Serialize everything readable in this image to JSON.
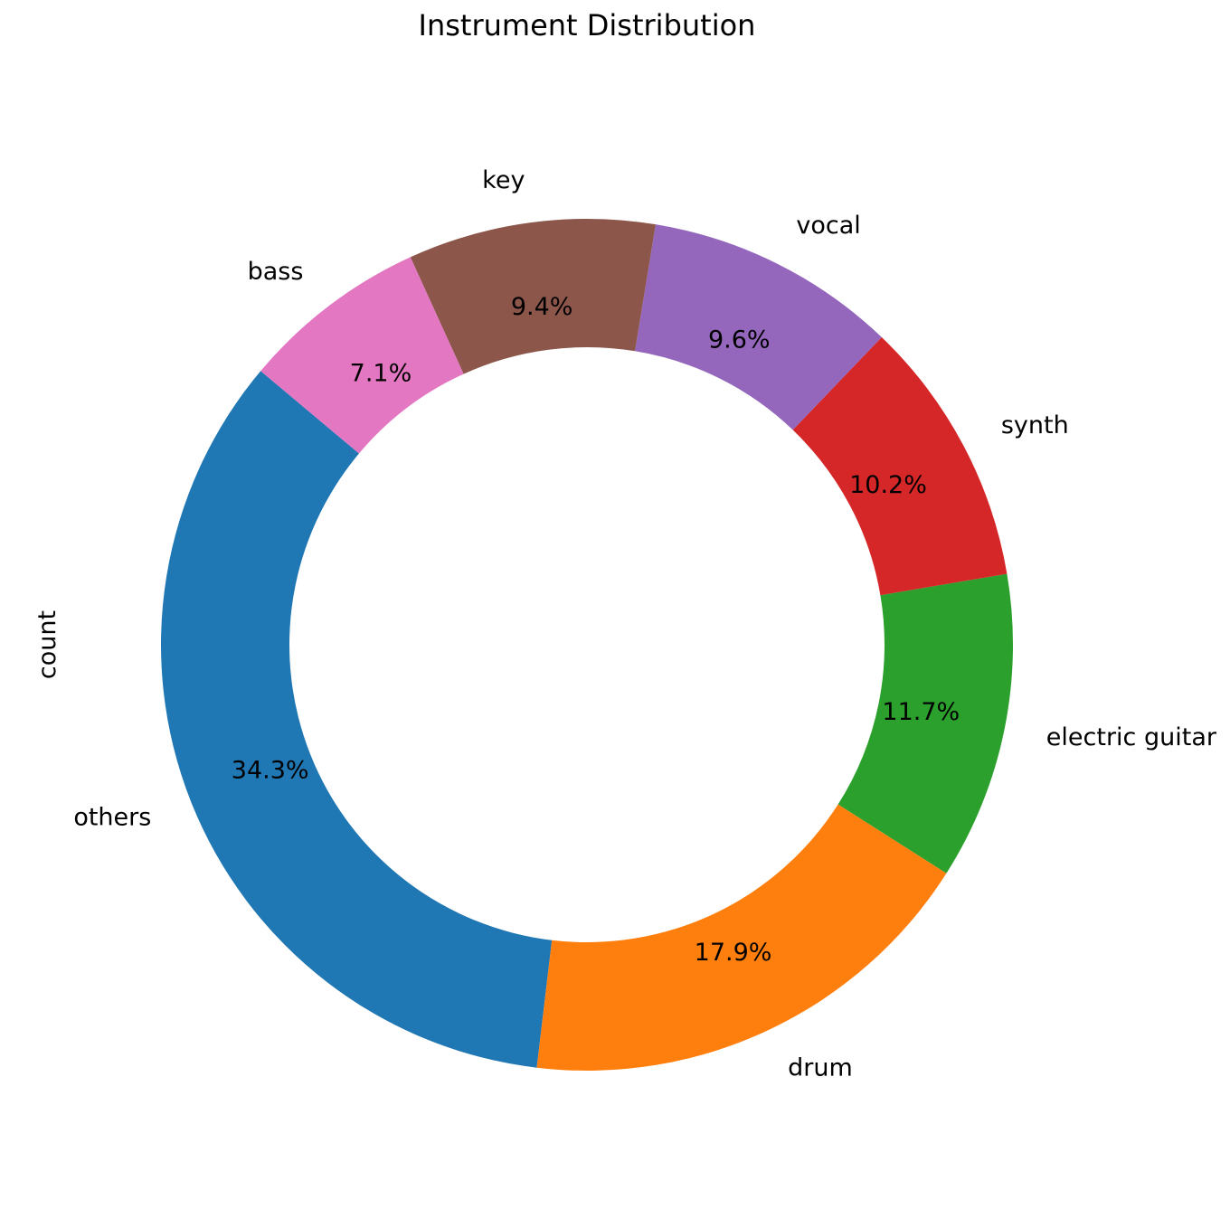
{
  "chart_data": {
    "type": "pie",
    "variant": "donut",
    "title": "Instrument Distribution",
    "ylabel": "count",
    "slices": [
      {
        "label": "others",
        "percent": 34.3,
        "pct_label": "34.3%",
        "color": "#1f77b4"
      },
      {
        "label": "drum",
        "percent": 17.9,
        "pct_label": "17.9%",
        "color": "#ff7f0e"
      },
      {
        "label": "electric guitar",
        "percent": 11.7,
        "pct_label": "11.7%",
        "color": "#2ca02c"
      },
      {
        "label": "synth",
        "percent": 10.2,
        "pct_label": "10.2%",
        "color": "#d62728"
      },
      {
        "label": "vocal",
        "percent": 9.6,
        "pct_label": "9.6%",
        "color": "#9467bd"
      },
      {
        "label": "key",
        "percent": 9.4,
        "pct_label": "9.4%",
        "color": "#8c564b"
      },
      {
        "label": "bass",
        "percent": 7.1,
        "pct_label": "7.1%",
        "color": "#e377c2"
      }
    ]
  }
}
